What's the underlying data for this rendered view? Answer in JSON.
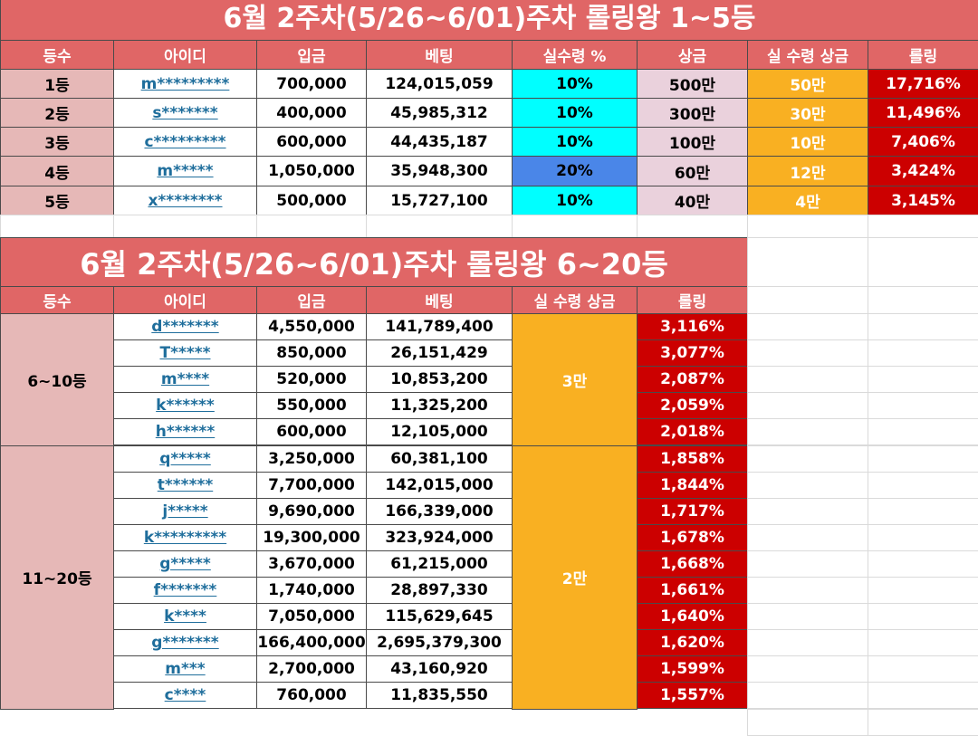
{
  "table1": {
    "title": "6월 2주차(5/26~6/01)주차 롤링왕 1~5등",
    "headers": [
      "등수",
      "아이디",
      "입금",
      "베팅",
      "실수령 %",
      "상금",
      "실 수령 상금",
      "롤링"
    ],
    "rows": [
      [
        "1등",
        "m*********",
        "700,000",
        "124,015,059",
        "10%",
        "500만",
        "50만",
        "17,716%"
      ],
      [
        "2등",
        "s*******",
        "400,000",
        "45,985,312",
        "10%",
        "300만",
        "30만",
        "11,496%"
      ],
      [
        "3등",
        "c*********",
        "600,000",
        "44,435,187",
        "10%",
        "100만",
        "10만",
        "7,406%"
      ],
      [
        "4등",
        "m*****",
        "1,050,000",
        "35,948,300",
        "20%",
        "60만",
        "12만",
        "3,424%"
      ],
      [
        "5등",
        "x********",
        "500,000",
        "15,727,100",
        "10%",
        "40만",
        "4만",
        "3,145%"
      ]
    ]
  },
  "table2": {
    "title": "6월 2주차(5/26~6/01)주차 롤링왕 6~20등",
    "headers": [
      "등수",
      "아이디",
      "입금",
      "베팅",
      "실 수령 상금",
      "롤링"
    ],
    "groups": [
      {
        "rank": "6~10등",
        "prize": "3만",
        "rows": [
          [
            "d*******",
            "4,550,000",
            "141,789,400",
            "3,116%"
          ],
          [
            "T*****",
            "850,000",
            "26,151,429",
            "3,077%"
          ],
          [
            "m****",
            "520,000",
            "10,853,200",
            "2,087%"
          ],
          [
            "k******",
            "550,000",
            "11,325,200",
            "2,059%"
          ],
          [
            "h******",
            "600,000",
            "12,105,000",
            "2,018%"
          ]
        ]
      },
      {
        "rank": "11~20등",
        "prize": "2만",
        "rows": [
          [
            "q*****",
            "3,250,000",
            "60,381,100",
            "1,858%"
          ],
          [
            "t******",
            "7,700,000",
            "142,015,000",
            "1,844%"
          ],
          [
            "j*****",
            "9,690,000",
            "166,339,000",
            "1,717%"
          ],
          [
            "k*********",
            "19,300,000",
            "323,924,000",
            "1,678%"
          ],
          [
            "g*****",
            "3,670,000",
            "61,215,000",
            "1,668%"
          ],
          [
            "f*******",
            "1,740,000",
            "28,897,330",
            "1,661%"
          ],
          [
            "k****",
            "7,050,000",
            "115,629,645",
            "1,640%"
          ],
          [
            "g*******",
            "166,400,000",
            "2,695,379,300",
            "1,620%"
          ],
          [
            "m***",
            "2,700,000",
            "43,160,920",
            "1,599%"
          ],
          [
            "c****",
            "760,000",
            "11,835,550",
            "1,557%"
          ]
        ]
      }
    ]
  }
}
